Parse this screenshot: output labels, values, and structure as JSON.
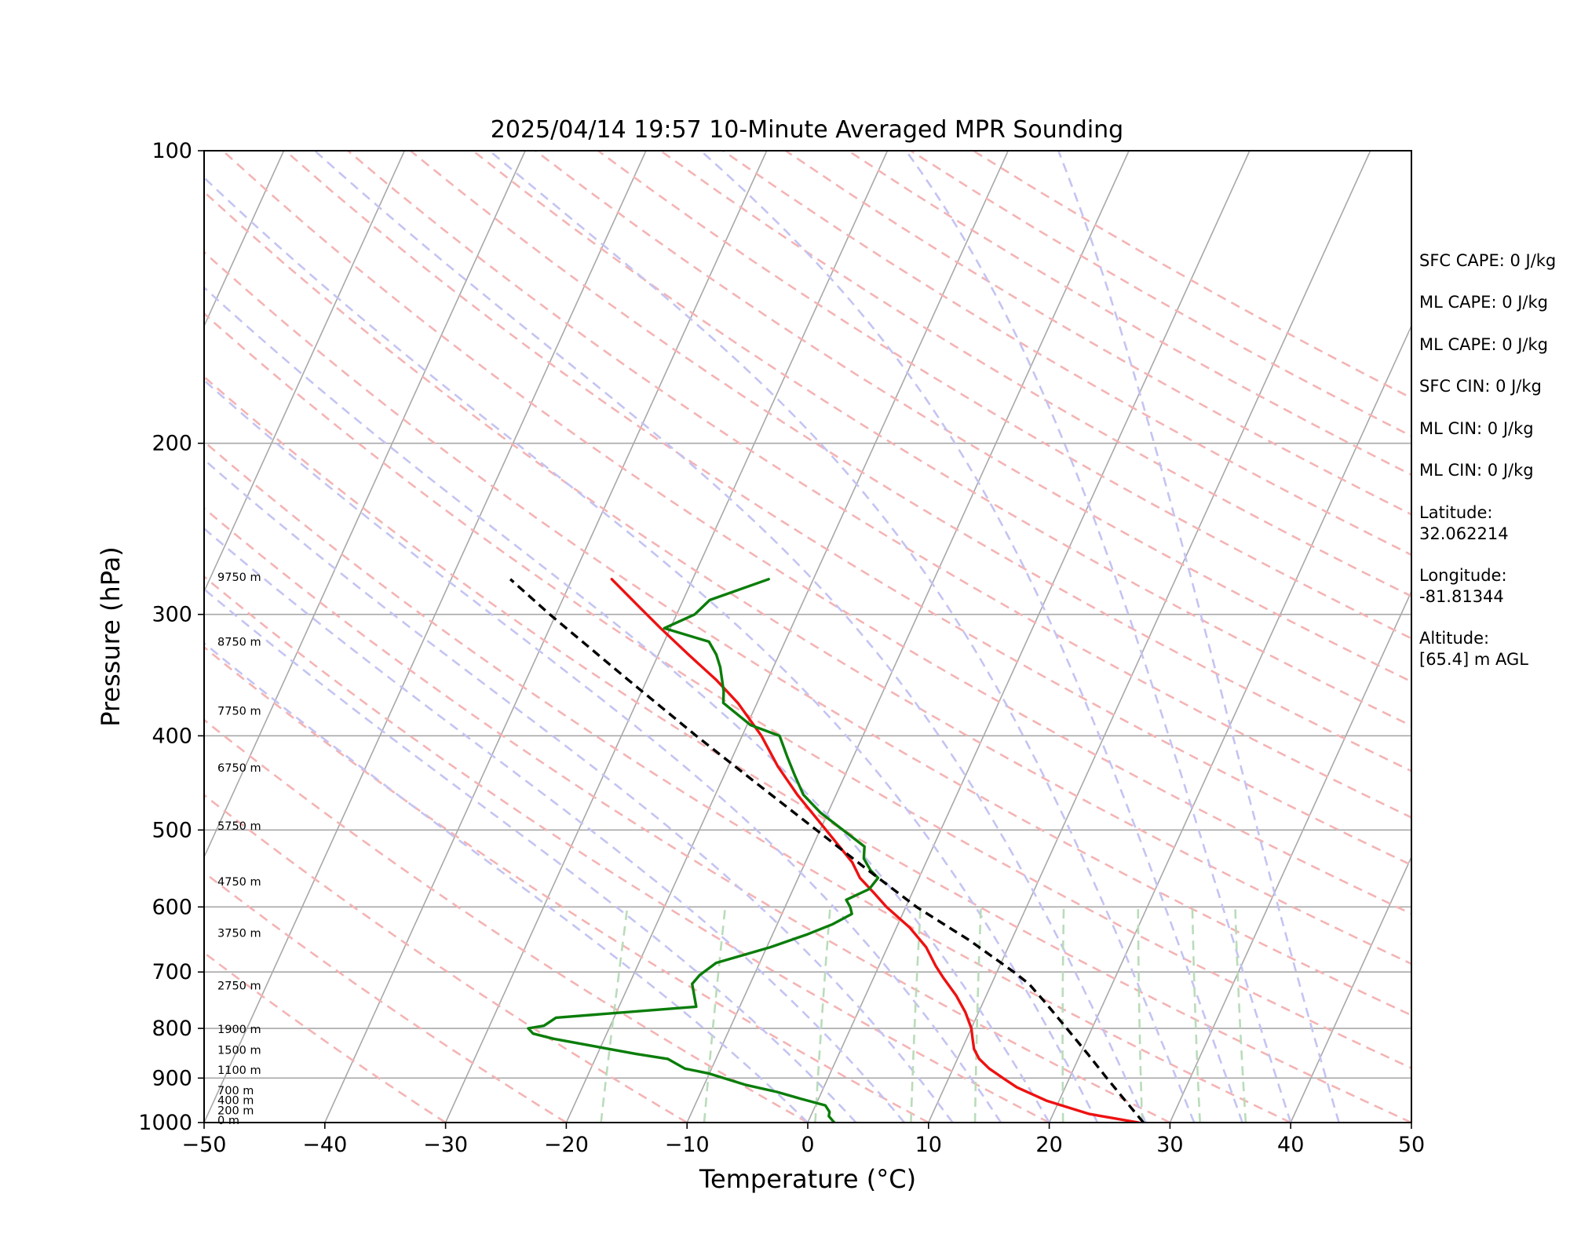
{
  "chart_data": {
    "type": "line",
    "title": "2025/04/14 19:57 10-Minute Averaged MPR Sounding",
    "xlabel": "Temperature (°C)",
    "ylabel": "Pressure (hPa)",
    "xlim": [
      -50,
      50
    ],
    "ylim": [
      1000,
      100
    ],
    "y_scale": "log",
    "x_ticks": [
      "−50",
      "−40",
      "−30",
      "−20",
      "−10",
      "0",
      "10",
      "20",
      "30",
      "40",
      "50"
    ],
    "y_ticks": [
      "100",
      "200",
      "300",
      "400",
      "500",
      "600",
      "700",
      "800",
      "900",
      "1000"
    ],
    "height_labels": [
      {
        "p": 1000,
        "label": "0 m"
      },
      {
        "p": 977,
        "label": "200 m"
      },
      {
        "p": 954,
        "label": "400 m"
      },
      {
        "p": 932,
        "label": "700 m"
      },
      {
        "p": 888,
        "label": "1100 m"
      },
      {
        "p": 847,
        "label": "1500 m"
      },
      {
        "p": 806,
        "label": "1900 m"
      },
      {
        "p": 727,
        "label": "2750 m"
      },
      {
        "p": 642,
        "label": "3750 m"
      },
      {
        "p": 568,
        "label": "4750 m"
      },
      {
        "p": 498,
        "label": "5750 m"
      },
      {
        "p": 434,
        "label": "6750 m"
      },
      {
        "p": 379,
        "label": "7750 m"
      },
      {
        "p": 322,
        "label": "8750 m"
      },
      {
        "p": 276,
        "label": "9750 m"
      }
    ],
    "series": [
      {
        "name": "",
        "color": "#ee1111",
        "points": [
          [
            1000,
            27.4
          ],
          [
            980,
            23
          ],
          [
            950,
            19
          ],
          [
            920,
            16
          ],
          [
            900,
            14.5
          ],
          [
            880,
            13
          ],
          [
            860,
            11.8
          ],
          [
            840,
            11
          ],
          [
            820,
            10.5
          ],
          [
            800,
            10
          ],
          [
            770,
            8.9
          ],
          [
            740,
            7.5
          ],
          [
            710,
            5.8
          ],
          [
            690,
            4.7
          ],
          [
            660,
            3.2
          ],
          [
            630,
            1.1
          ],
          [
            600,
            -1.6
          ],
          [
            580,
            -3.2
          ],
          [
            560,
            -4.9
          ],
          [
            540,
            -6.1
          ],
          [
            500,
            -9.5
          ],
          [
            460,
            -13.2
          ],
          [
            430,
            -15.9
          ],
          [
            400,
            -18.4
          ],
          [
            370,
            -21.6
          ],
          [
            350,
            -24.3
          ],
          [
            330,
            -27.5
          ],
          [
            310,
            -30.8
          ],
          [
            294,
            -33.5
          ],
          [
            276,
            -36.7
          ]
        ]
      },
      {
        "name": "",
        "color": "#0a7d0a",
        "points": [
          [
            1000,
            2.2
          ],
          [
            985,
            1.5
          ],
          [
            975,
            1.4
          ],
          [
            965,
            1
          ],
          [
            960,
            0.8
          ],
          [
            945,
            -1.5
          ],
          [
            930,
            -3.7
          ],
          [
            915,
            -6.5
          ],
          [
            890,
            -10.1
          ],
          [
            880,
            -12.2
          ],
          [
            860,
            -14
          ],
          [
            850,
            -16.8
          ],
          [
            820,
            -24.2
          ],
          [
            810,
            -26.1
          ],
          [
            800,
            -26.7
          ],
          [
            795,
            -25.5
          ],
          [
            780,
            -24.8
          ],
          [
            760,
            -13.6
          ],
          [
            720,
            -14.8
          ],
          [
            705,
            -14.5
          ],
          [
            685,
            -13.6
          ],
          [
            660,
            -9.7
          ],
          [
            640,
            -7.1
          ],
          [
            625,
            -5.4
          ],
          [
            610,
            -4.2
          ],
          [
            600,
            -4.6
          ],
          [
            590,
            -5.2
          ],
          [
            575,
            -3.7
          ],
          [
            560,
            -3.4
          ],
          [
            550,
            -4.3
          ],
          [
            535,
            -5.3
          ],
          [
            520,
            -5.7
          ],
          [
            480,
            -10.6
          ],
          [
            460,
            -12.7
          ],
          [
            440,
            -14.1
          ],
          [
            420,
            -15.5
          ],
          [
            400,
            -16.9
          ],
          [
            390,
            -19.7
          ],
          [
            370,
            -22.8
          ],
          [
            360,
            -23.2
          ],
          [
            340,
            -24.4
          ],
          [
            330,
            -25.2
          ],
          [
            320,
            -26.3
          ],
          [
            310,
            -30.5
          ],
          [
            300,
            -28.5
          ],
          [
            290,
            -27.8
          ],
          [
            276,
            -23.7
          ]
        ]
      },
      {
        "name": "",
        "color": "#000000",
        "dashed": true,
        "points": [
          [
            1000,
            27.8
          ],
          [
            950,
            25.5
          ],
          [
            900,
            23.1
          ],
          [
            850,
            20.6
          ],
          [
            800,
            17.9
          ],
          [
            750,
            15
          ],
          [
            720,
            13.1
          ],
          [
            700,
            11.4
          ],
          [
            650,
            6.6
          ],
          [
            600,
            0.9
          ],
          [
            550,
            -4.5
          ],
          [
            500,
            -10.3
          ],
          [
            450,
            -16.7
          ],
          [
            400,
            -23.8
          ],
          [
            350,
            -31.6
          ],
          [
            300,
            -40.5
          ],
          [
            276,
            -45.1
          ]
        ]
      }
    ]
  },
  "info_panel": [
    "SFC CAPE: 0 J/kg",
    "ML CAPE: 0 J/kg",
    "ML CAPE: 0 J/kg",
    "SFC CIN: 0 J/kg",
    "ML CIN: 0 J/kg",
    "ML CIN: 0 J/kg",
    "Latitude:",
    "32.062214",
    "Longitude:",
    "-81.81344",
    "Altitude:",
    "[65.4] m AGL"
  ]
}
